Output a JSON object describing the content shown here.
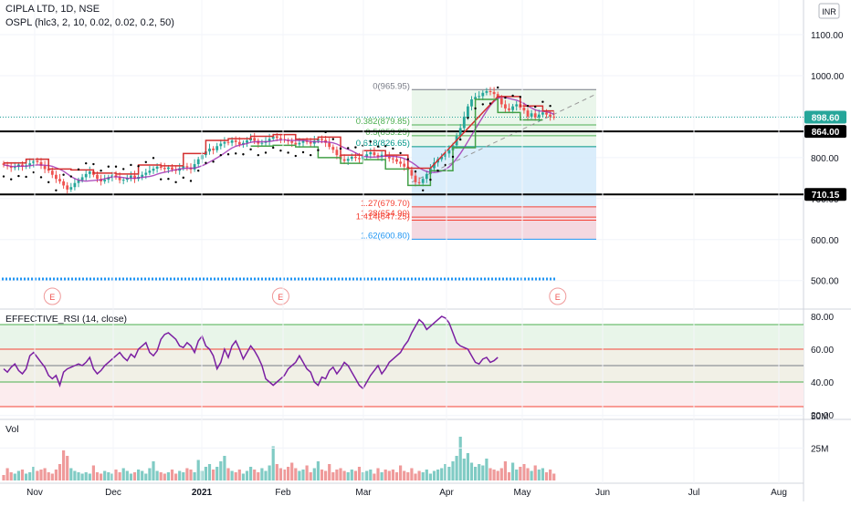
{
  "header": {
    "title": "CIPLA LTD, 1D, NSE",
    "indicator": "OSPL (hlc3, 2, 10, 0.02, 0.02, 0.2, 50)",
    "currency": "INR"
  },
  "rsi_label": "EFFECTIVE_RSI (14, close)",
  "vol_label": "Vol",
  "colors": {
    "up": "#26a69a",
    "down": "#ef5350",
    "rsi": "#7b1fa2",
    "ma": "#9c27b0",
    "sar": "#000000",
    "osc_red": "#d32f2f",
    "osc_green": "#43a047",
    "dotted": "#2196f3",
    "price_tag": "#26a69a"
  },
  "chart_data": [
    {
      "type": "candlestick",
      "title": "CIPLA LTD, 1D, NSE",
      "yaxis": {
        "min": 450,
        "max": 1150,
        "ticks": [
          "1100.00",
          "1000.00",
          "900.00",
          "800.00",
          "700.00",
          "600.00",
          "500.00"
        ]
      },
      "xaxis_labels": [
        "Nov",
        "Dec",
        "2021",
        "Feb",
        "Mar",
        "Apr",
        "May",
        "Jun",
        "Jul",
        "Aug"
      ],
      "price_tags": [
        {
          "value": 898.6,
          "label": "898.60"
        },
        {
          "value": 864.0,
          "label": "864.00"
        },
        {
          "value": 710.15,
          "label": "710.15"
        }
      ],
      "levels": [
        864.0,
        710.15
      ],
      "fibonacci": [
        {
          "ratio": "0",
          "price": 965.95,
          "label": "0(965.95)"
        },
        {
          "ratio": "0.382",
          "price": 879.85,
          "label": "0.382(879.85)"
        },
        {
          "ratio": "0.5",
          "price": 853.25,
          "label": "0.5(853.25)"
        },
        {
          "ratio": "0.618",
          "price": 826.65,
          "label": "0.618(826.65)"
        },
        {
          "ratio": "1.27",
          "price": 679.7,
          "label": "1.27(679.70)"
        },
        {
          "ratio": "1.38",
          "price": 654.9,
          "label": "1.38(654.90)"
        },
        {
          "ratio": "1.414",
          "price": 647.25,
          "label": "1.414(647.25)"
        },
        {
          "ratio": "1.62",
          "price": 600.8,
          "label": "1.62(600.80)"
        }
      ],
      "earnings_markers": [
        "E",
        "E",
        "E"
      ],
      "close_series": [
        782,
        779,
        775,
        777,
        783,
        778,
        781,
        786,
        792,
        789,
        780,
        772,
        768,
        758,
        748,
        742,
        732,
        722,
        728,
        738,
        745,
        752,
        760,
        766,
        758,
        748,
        742,
        746,
        752,
        757,
        752,
        745,
        746,
        750,
        756,
        748,
        753,
        758,
        763,
        768,
        773,
        778,
        775,
        772,
        776,
        771,
        768,
        774,
        779,
        776,
        771,
        784,
        796,
        806,
        815,
        822,
        818,
        828,
        834,
        838,
        836,
        842,
        838,
        832,
        836,
        842,
        848,
        841,
        834,
        836,
        840,
        846,
        852,
        848,
        845,
        842,
        840,
        836,
        832,
        836,
        841,
        838,
        834,
        841,
        846,
        843,
        836,
        826,
        819,
        806,
        796,
        792,
        797,
        802,
        799,
        796,
        803,
        808,
        813,
        806,
        801,
        807,
        802,
        798,
        796,
        790,
        785,
        778,
        770,
        756,
        740,
        738,
        748,
        760,
        774,
        788,
        796,
        802,
        810,
        818,
        830,
        852,
        872,
        900,
        925,
        942,
        948,
        950,
        958,
        962,
        960,
        955,
        945,
        930,
        920,
        916,
        925,
        930,
        922,
        915,
        900,
        908,
        898,
        905,
        910,
        905,
        900,
        898
      ],
      "volume_series": [
        4,
        9,
        6,
        5,
        7,
        8,
        5,
        6,
        10,
        7,
        8,
        9,
        6,
        5,
        8,
        12,
        22,
        18,
        9,
        7,
        6,
        5,
        6,
        5,
        11,
        6,
        5,
        7,
        6,
        5,
        8,
        6,
        9,
        7,
        5,
        6,
        8,
        7,
        5,
        9,
        14,
        7,
        6,
        5,
        6,
        8,
        5,
        7,
        6,
        9,
        8,
        6,
        15,
        7,
        10,
        12,
        8,
        10,
        14,
        18,
        9,
        7,
        6,
        8,
        5,
        7,
        10,
        8,
        6,
        9,
        7,
        11,
        25,
        12,
        9,
        8,
        10,
        13,
        9,
        7,
        8,
        11,
        6,
        9,
        14,
        8,
        7,
        12,
        6,
        8,
        9,
        7,
        6,
        8,
        7,
        10,
        6,
        7,
        8,
        5,
        9,
        6,
        8,
        7,
        8,
        6,
        11,
        7,
        6,
        9,
        5,
        7,
        6,
        8,
        5,
        7,
        8,
        9,
        12,
        10,
        14,
        18,
        32,
        16,
        20,
        13,
        10,
        12,
        11,
        16,
        9,
        8,
        7,
        9,
        14,
        6,
        13,
        8,
        10,
        12,
        9,
        7,
        11,
        8,
        9,
        6,
        8,
        5
      ],
      "rsi_series": [
        48,
        46,
        49,
        51,
        47,
        45,
        48,
        56,
        58,
        55,
        52,
        49,
        44,
        42,
        44,
        38,
        46,
        48,
        49,
        50,
        51,
        50,
        52,
        55,
        48,
        45,
        47,
        50,
        52,
        54,
        56,
        58,
        55,
        53,
        57,
        55,
        60,
        62,
        64,
        58,
        56,
        59,
        66,
        69,
        70,
        68,
        66,
        62,
        61,
        64,
        62,
        58,
        65,
        68,
        62,
        60,
        56,
        48,
        52,
        60,
        55,
        62,
        65,
        60,
        54,
        58,
        62,
        59,
        55,
        50,
        42,
        40,
        38,
        40,
        42,
        44,
        48,
        50,
        52,
        56,
        52,
        48,
        46,
        40,
        38,
        43,
        42,
        47,
        49,
        45,
        48,
        52,
        50,
        46,
        42,
        38,
        36,
        40,
        44,
        47,
        50,
        45,
        48,
        52,
        54,
        56,
        58,
        62,
        65,
        70,
        74,
        78,
        76,
        72,
        74,
        76,
        78,
        80,
        79,
        76,
        70,
        64,
        62,
        61,
        60,
        56,
        52,
        51,
        54,
        55,
        52,
        53,
        55
      ]
    },
    {
      "type": "line",
      "title": "EFFECTIVE_RSI (14, close)",
      "yaxis": {
        "min": 15,
        "max": 85,
        "ticks": [
          "80.00",
          "60.00",
          "40.00",
          "20.00"
        ]
      },
      "levels": [
        75,
        60,
        50,
        40,
        25
      ]
    },
    {
      "type": "bar",
      "title": "Vol",
      "yaxis": {
        "ticks": [
          "50M",
          "25M"
        ]
      }
    }
  ]
}
